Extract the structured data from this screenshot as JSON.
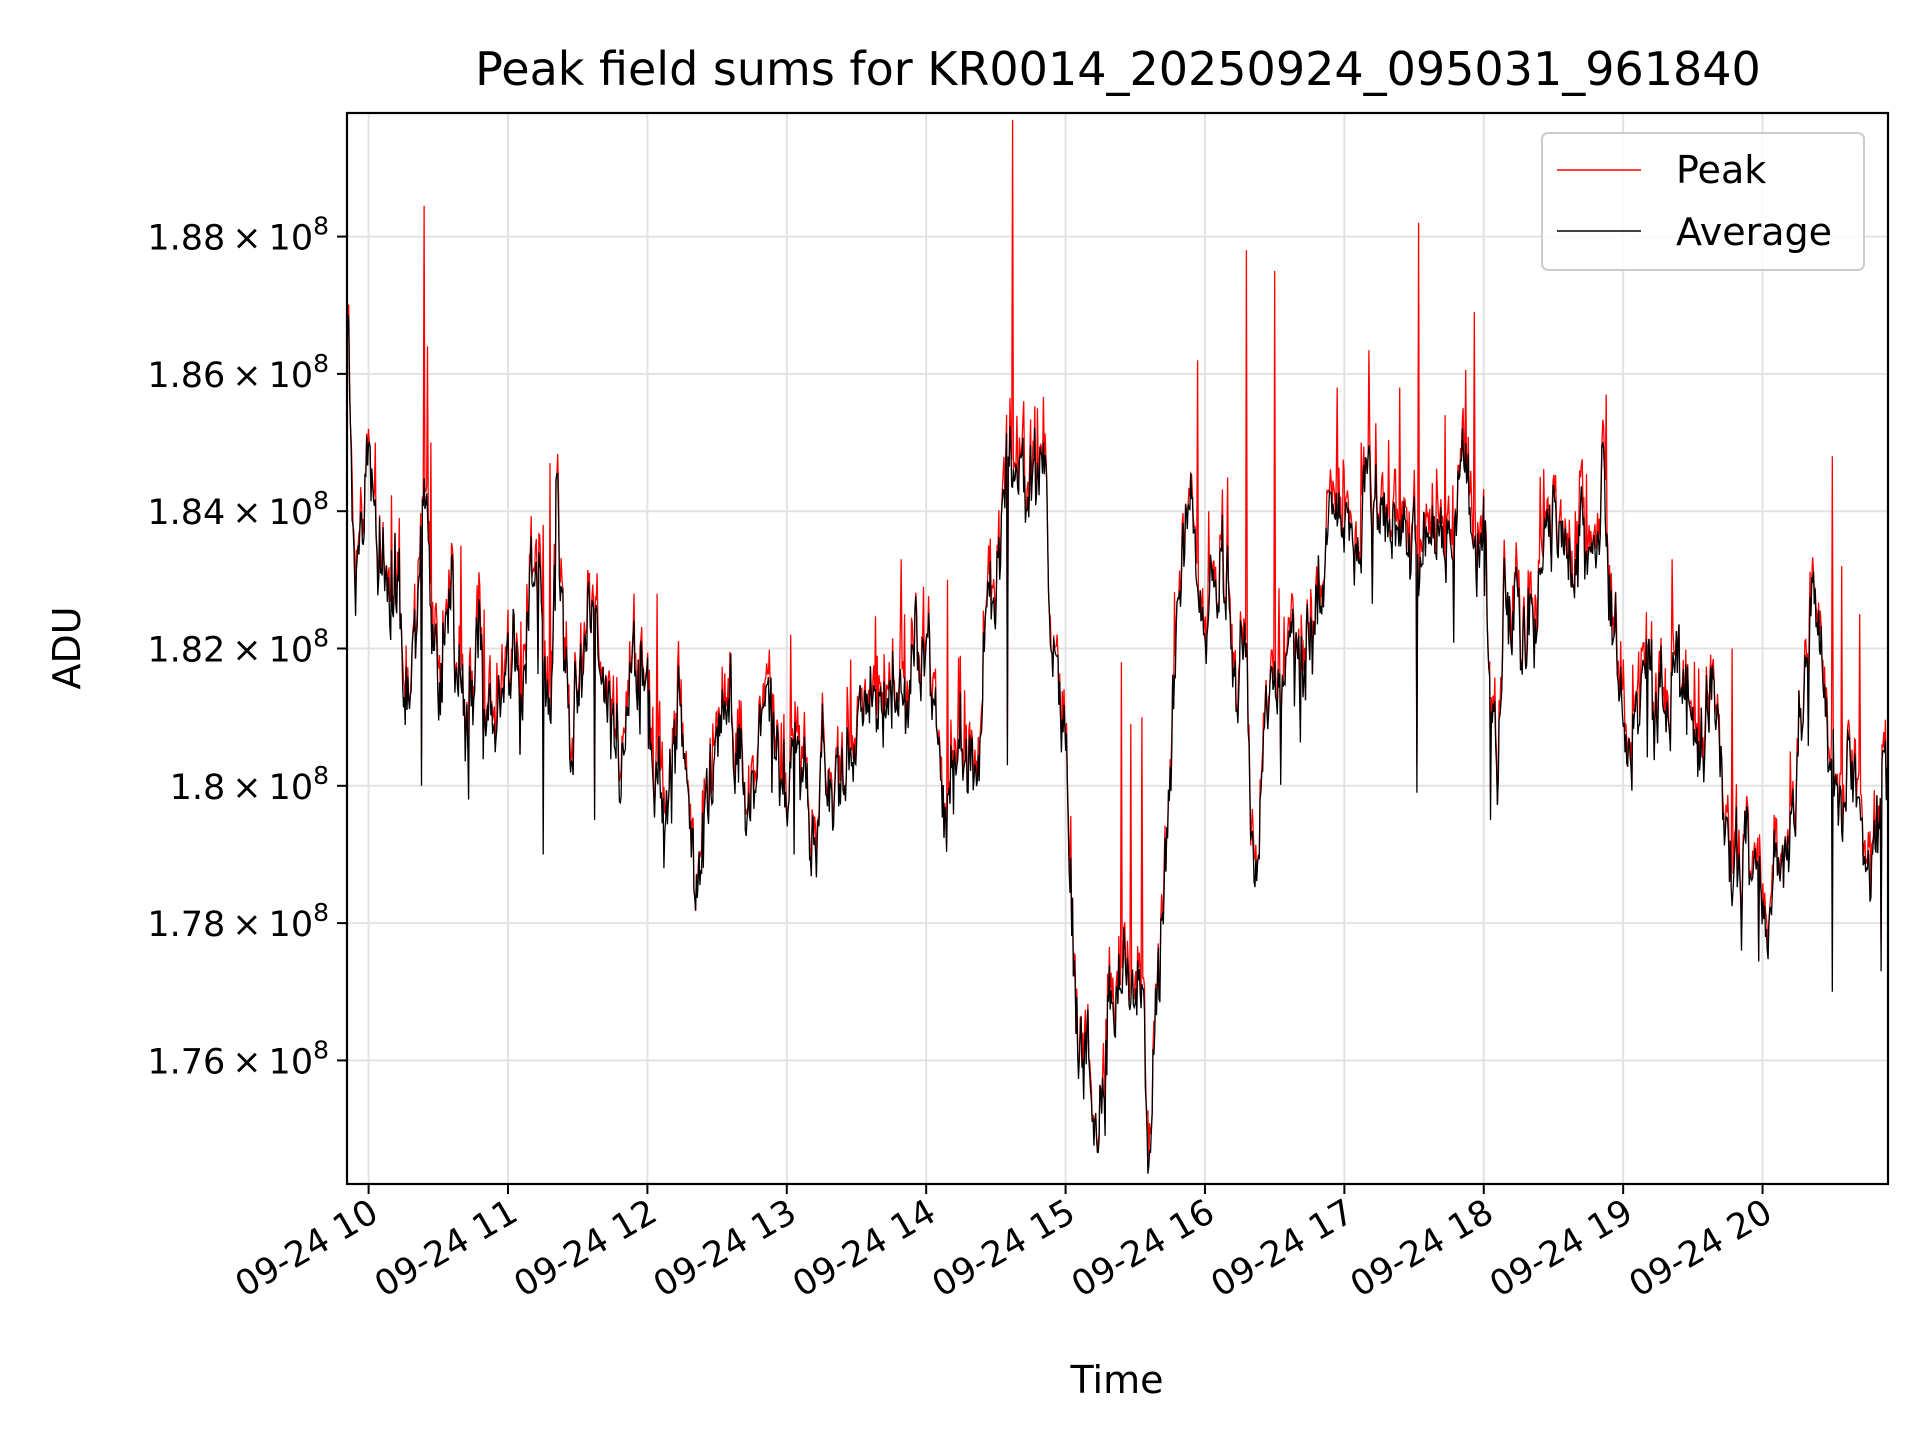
{
  "chart_data": {
    "type": "line",
    "title": "Peak field sums for KR0014_20250924_095031_961840",
    "xlabel": "Time",
    "ylabel": "ADU",
    "x_start_hour": 9.845,
    "x_end_hour": 20.9,
    "ylim": [
      174200000.0,
      189800000.0
    ],
    "xticks": [
      {
        "hour": 10,
        "label": "09-24 10"
      },
      {
        "hour": 11,
        "label": "09-24 11"
      },
      {
        "hour": 12,
        "label": "09-24 12"
      },
      {
        "hour": 13,
        "label": "09-24 13"
      },
      {
        "hour": 14,
        "label": "09-24 14"
      },
      {
        "hour": 15,
        "label": "09-24 15"
      },
      {
        "hour": 16,
        "label": "09-24 16"
      },
      {
        "hour": 17,
        "label": "09-24 17"
      },
      {
        "hour": 18,
        "label": "09-24 18"
      },
      {
        "hour": 19,
        "label": "09-24 19"
      },
      {
        "hour": 20,
        "label": "09-24 20"
      }
    ],
    "yticks": [
      {
        "value": 176000000,
        "mantissa": "1.76",
        "base": "10",
        "exp": "8"
      },
      {
        "value": 178000000,
        "mantissa": "1.78",
        "base": "10",
        "exp": "8"
      },
      {
        "value": 180000000,
        "mantissa": "1.8",
        "base": "10",
        "exp": "8"
      },
      {
        "value": 182000000,
        "mantissa": "1.82",
        "base": "10",
        "exp": "8"
      },
      {
        "value": 184000000,
        "mantissa": "1.84",
        "base": "10",
        "exp": "8"
      },
      {
        "value": 186000000,
        "mantissa": "1.86",
        "base": "10",
        "exp": "8"
      },
      {
        "value": 188000000,
        "mantissa": "1.88",
        "base": "10",
        "exp": "8"
      }
    ],
    "grid": true,
    "legend_position": "top-right",
    "series": [
      {
        "name": "Peak",
        "color": "#ff0000"
      },
      {
        "name": "Average",
        "color": "#000000"
      }
    ],
    "average_anchors": [
      [
        9.845,
        186.5
      ],
      [
        9.9,
        183.0
      ],
      [
        10.0,
        184.2
      ],
      [
        10.2,
        182.8
      ],
      [
        10.3,
        181.0
      ],
      [
        10.4,
        184.5
      ],
      [
        10.5,
        182.0
      ],
      [
        10.6,
        182.8
      ],
      [
        10.7,
        180.5
      ],
      [
        10.8,
        182.2
      ],
      [
        10.9,
        181.0
      ],
      [
        11.0,
        181.8
      ],
      [
        11.1,
        181.5
      ],
      [
        11.15,
        182.8
      ],
      [
        11.25,
        182.5
      ],
      [
        11.3,
        181.0
      ],
      [
        11.35,
        184.0
      ],
      [
        11.45,
        180.0
      ],
      [
        11.55,
        182.5
      ],
      [
        11.7,
        181.5
      ],
      [
        11.85,
        180.5
      ],
      [
        12.0,
        181.8
      ],
      [
        12.05,
        180.0
      ],
      [
        12.15,
        179.5
      ],
      [
        12.25,
        181.0
      ],
      [
        12.35,
        178.8
      ],
      [
        12.45,
        179.6
      ],
      [
        12.5,
        180.5
      ],
      [
        12.6,
        181.5
      ],
      [
        12.7,
        180.2
      ],
      [
        12.8,
        180.0
      ],
      [
        12.9,
        180.5
      ],
      [
        13.0,
        179.5
      ],
      [
        13.1,
        180.8
      ],
      [
        13.2,
        179.5
      ],
      [
        13.3,
        180.0
      ],
      [
        13.4,
        180.5
      ],
      [
        13.5,
        181.0
      ],
      [
        13.6,
        181.5
      ],
      [
        13.7,
        181.2
      ],
      [
        13.8,
        182.0
      ],
      [
        13.9,
        181.5
      ],
      [
        14.0,
        182.0
      ],
      [
        14.1,
        180.5
      ],
      [
        14.15,
        180.0
      ],
      [
        14.3,
        180.5
      ],
      [
        14.4,
        180.8
      ],
      [
        14.45,
        182.5
      ],
      [
        14.55,
        184.0
      ],
      [
        14.6,
        185.0
      ],
      [
        14.7,
        184.5
      ],
      [
        14.8,
        184.2
      ],
      [
        14.85,
        184.8
      ],
      [
        14.9,
        182.5
      ],
      [
        14.95,
        182.0
      ],
      [
        15.0,
        181.0
      ],
      [
        15.05,
        178.0
      ],
      [
        15.15,
        176.0
      ],
      [
        15.2,
        174.5
      ],
      [
        15.28,
        176.8
      ],
      [
        15.35,
        178.0
      ],
      [
        15.45,
        177.5
      ],
      [
        15.55,
        177.0
      ],
      [
        15.6,
        175.2
      ],
      [
        15.7,
        178.0
      ],
      [
        15.8,
        182.0
      ],
      [
        15.9,
        184.0
      ],
      [
        16.0,
        182.5
      ],
      [
        16.1,
        183.5
      ],
      [
        16.2,
        182.5
      ],
      [
        16.25,
        182.0
      ],
      [
        16.3,
        182.8
      ],
      [
        16.33,
        179.5
      ],
      [
        16.37,
        179.3
      ],
      [
        16.45,
        181.0
      ],
      [
        16.55,
        181.8
      ],
      [
        16.65,
        182.3
      ],
      [
        16.75,
        182.7
      ],
      [
        16.85,
        183.2
      ],
      [
        16.95,
        183.8
      ],
      [
        17.05,
        183.5
      ],
      [
        17.15,
        184.5
      ],
      [
        17.25,
        183.8
      ],
      [
        17.35,
        184.2
      ],
      [
        17.45,
        182.8
      ],
      [
        17.55,
        183.5
      ],
      [
        17.65,
        183.2
      ],
      [
        17.75,
        184.2
      ],
      [
        17.85,
        184.8
      ],
      [
        17.95,
        182.8
      ],
      [
        18.0,
        183.8
      ],
      [
        18.05,
        181.8
      ],
      [
        18.1,
        180.0
      ],
      [
        18.15,
        182.5
      ],
      [
        18.3,
        182.3
      ],
      [
        18.4,
        183.0
      ],
      [
        18.5,
        183.8
      ],
      [
        18.6,
        183.3
      ],
      [
        18.7,
        183.5
      ],
      [
        18.8,
        183.0
      ],
      [
        18.85,
        184.0
      ],
      [
        18.9,
        182.8
      ],
      [
        19.0,
        181.0
      ],
      [
        19.05,
        180.5
      ],
      [
        19.15,
        181.8
      ],
      [
        19.25,
        181.0
      ],
      [
        19.35,
        182.0
      ],
      [
        19.45,
        181.3
      ],
      [
        19.55,
        180.5
      ],
      [
        19.65,
        181.0
      ],
      [
        19.75,
        179.0
      ],
      [
        19.85,
        178.5
      ],
      [
        19.95,
        179.5
      ],
      [
        20.05,
        179.0
      ],
      [
        20.15,
        179.3
      ],
      [
        20.25,
        180.5
      ],
      [
        20.35,
        182.0
      ],
      [
        20.45,
        181.0
      ],
      [
        20.55,
        179.5
      ],
      [
        20.65,
        180.5
      ],
      [
        20.75,
        179.0
      ],
      [
        20.9,
        180.5
      ]
    ],
    "peak_spikes": [
      [
        9.852,
        186.9
      ],
      [
        10.0,
        185.2
      ],
      [
        10.05,
        185.0
      ],
      [
        10.4,
        188.45
      ],
      [
        10.42,
        186.4
      ],
      [
        10.45,
        185.0
      ],
      [
        10.66,
        183.5
      ],
      [
        11.25,
        183.8
      ],
      [
        11.3,
        184.7
      ],
      [
        12.07,
        182.8
      ],
      [
        13.03,
        182.2
      ],
      [
        13.82,
        183.3
      ],
      [
        14.15,
        183.0
      ],
      [
        14.45,
        183.5
      ],
      [
        14.62,
        189.7
      ],
      [
        14.7,
        185.6
      ],
      [
        14.8,
        185.5
      ],
      [
        15.4,
        181.8
      ],
      [
        15.47,
        180.9
      ],
      [
        15.55,
        181.0
      ],
      [
        15.95,
        186.2
      ],
      [
        16.03,
        184.0
      ],
      [
        16.3,
        187.8
      ],
      [
        16.5,
        187.5
      ],
      [
        16.95,
        185.8
      ],
      [
        17.12,
        185.0
      ],
      [
        17.4,
        185.8
      ],
      [
        17.53,
        188.2
      ],
      [
        17.72,
        185.4
      ],
      [
        17.85,
        185.5
      ],
      [
        17.93,
        186.9
      ],
      [
        18.48,
        183.5
      ],
      [
        18.66,
        184.0
      ],
      [
        18.88,
        185.7
      ],
      [
        19.35,
        183.3
      ],
      [
        19.78,
        182.0
      ],
      [
        20.2,
        180.5
      ],
      [
        20.5,
        184.8
      ],
      [
        20.57,
        183.2
      ],
      [
        20.7,
        182.5
      ]
    ],
    "average_drops": [
      [
        10.38,
        180.0
      ],
      [
        10.72,
        179.8
      ],
      [
        11.25,
        179.0
      ],
      [
        11.62,
        179.5
      ],
      [
        12.12,
        178.8
      ],
      [
        13.05,
        179.0
      ],
      [
        14.58,
        180.3
      ],
      [
        16.33,
        179.2
      ],
      [
        17.52,
        179.9
      ],
      [
        18.05,
        179.5
      ],
      [
        19.85,
        177.6
      ],
      [
        20.5,
        177.0
      ],
      [
        20.85,
        177.3
      ]
    ]
  }
}
